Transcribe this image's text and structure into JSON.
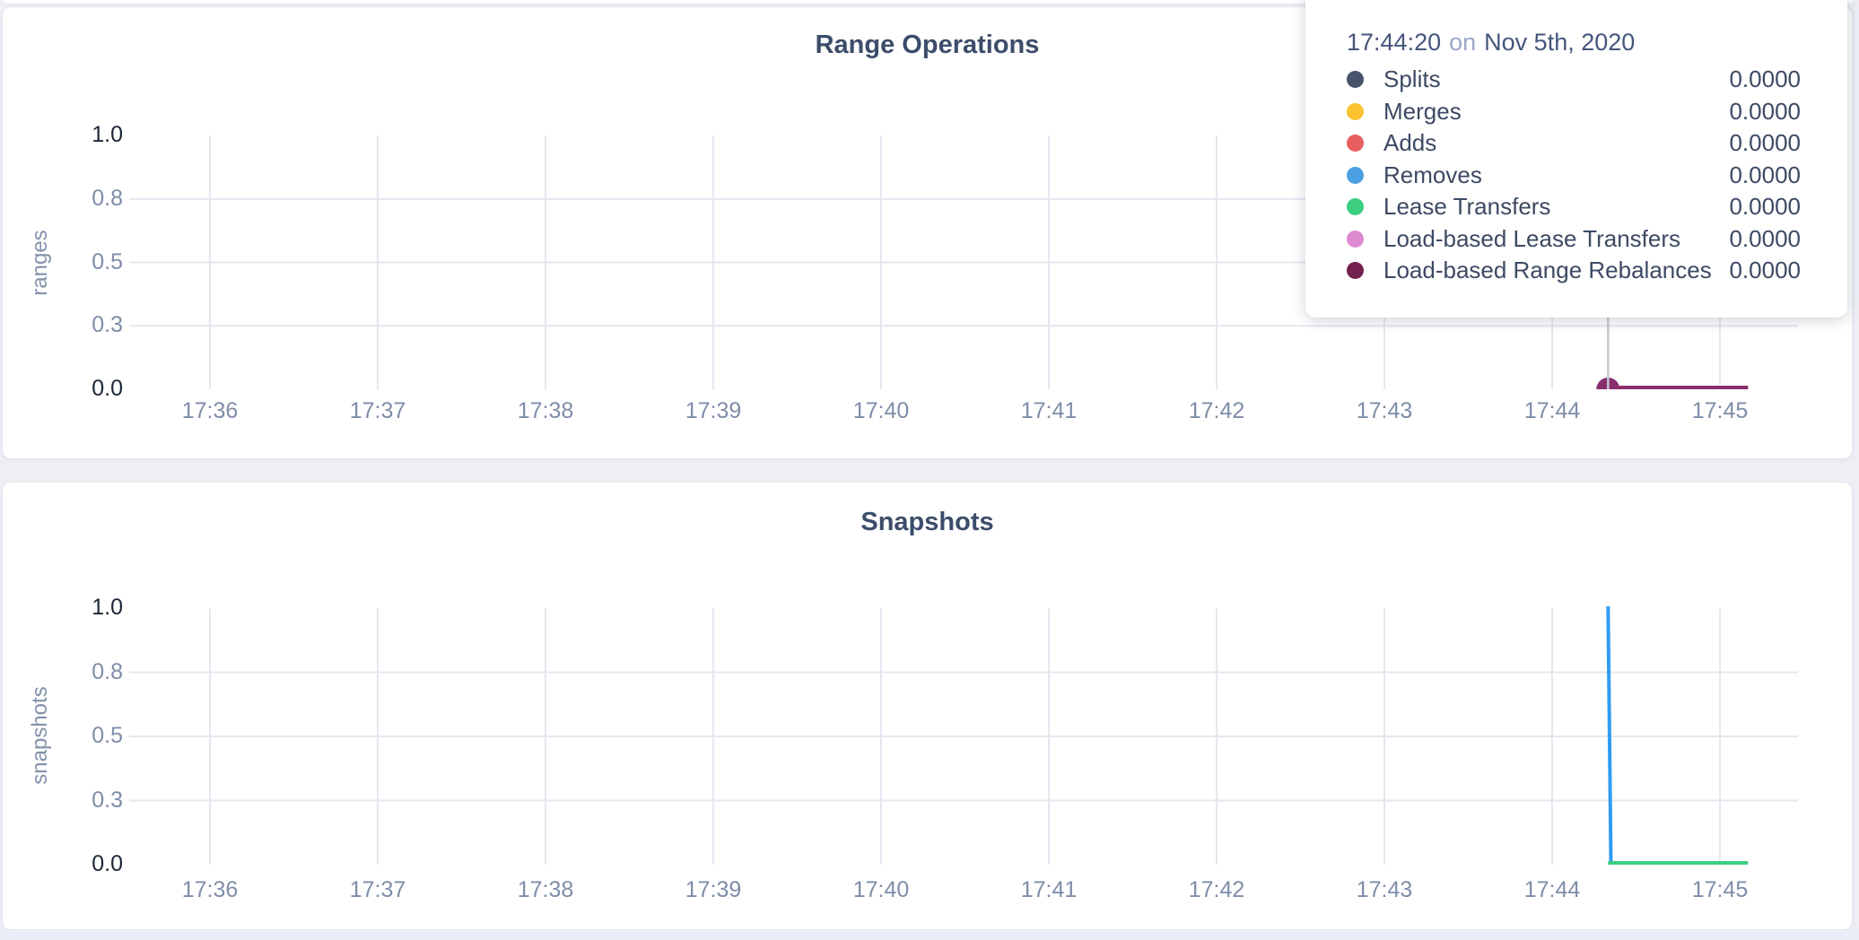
{
  "page": {
    "background_color": "#edeff5",
    "card_color": "#ffffff",
    "grid_color": "#e4e7ef",
    "tick_color_light": "#7e8da8",
    "tick_color_dark": "#1c2538",
    "title_color": "#3c4d6b"
  },
  "chart_data": [
    {
      "type": "line",
      "title": "Range Operations",
      "ylabel": "ranges",
      "xlabel": "",
      "ylim": [
        0,
        1
      ],
      "yticks": [
        "1.0",
        "0.8",
        "0.5",
        "0.3",
        "0.0"
      ],
      "xticks": [
        "17:36",
        "17:37",
        "17:38",
        "17:39",
        "17:40",
        "17:41",
        "17:42",
        "17:43",
        "17:44",
        "17:45"
      ],
      "grid": "on",
      "series": [
        {
          "name": "Splits",
          "color": "#47536b",
          "points": [
            [
              "17:44:16",
              0
            ],
            [
              "17:45:10",
              0
            ]
          ]
        },
        {
          "name": "Merges",
          "color": "#fcc230",
          "points": [
            [
              "17:44:16",
              0
            ],
            [
              "17:45:10",
              0
            ]
          ]
        },
        {
          "name": "Adds",
          "color": "#e85f5f",
          "points": [
            [
              "17:44:16",
              0
            ],
            [
              "17:45:10",
              0
            ]
          ]
        },
        {
          "name": "Removes",
          "color": "#4aa0e0",
          "points": [
            [
              "17:44:16",
              0
            ],
            [
              "17:45:10",
              0
            ]
          ]
        },
        {
          "name": "Lease Transfers",
          "color": "#3dce80",
          "points": [
            [
              "17:44:16",
              0
            ],
            [
              "17:45:10",
              0
            ]
          ]
        },
        {
          "name": "Load-based Lease Transfers",
          "color": "#dd8ad1",
          "points": [
            [
              "17:44:16",
              0
            ],
            [
              "17:45:10",
              0
            ]
          ]
        },
        {
          "name": "Load-based Range Rebalances",
          "color": "#8a2f6e",
          "points": [
            [
              "17:44:16",
              0
            ],
            [
              "17:45:10",
              0
            ]
          ]
        }
      ],
      "hover": {
        "time": "17:44:20",
        "crosshair_color": "#c6cad3",
        "point_color": "#8a2f6e"
      }
    },
    {
      "type": "line",
      "title": "Snapshots",
      "ylabel": "snapshots",
      "xlabel": "",
      "ylim": [
        0,
        1
      ],
      "yticks": [
        "1.0",
        "0.8",
        "0.5",
        "0.3",
        "0.0"
      ],
      "xticks": [
        "17:36",
        "17:37",
        "17:38",
        "17:39",
        "17:40",
        "17:41",
        "17:42",
        "17:43",
        "17:44",
        "17:45"
      ],
      "grid": "on",
      "series": [
        {
          "name": "",
          "color": "#2f9cf4",
          "points": [
            [
              "17:44:20",
              1
            ],
            [
              "17:44:21",
              0
            ],
            [
              "17:45:10",
              0
            ]
          ]
        },
        {
          "name": "",
          "color": "#3dce80",
          "points": [
            [
              "17:44:20",
              0
            ],
            [
              "17:45:10",
              0
            ]
          ]
        }
      ]
    }
  ],
  "tooltip": {
    "time": "17:44:20",
    "connector": "on",
    "date": "Nov 5th, 2020",
    "rows": [
      {
        "label": "Splits",
        "color": "#47536b",
        "value": "0.0000"
      },
      {
        "label": "Merges",
        "color": "#fcc230",
        "value": "0.0000"
      },
      {
        "label": "Adds",
        "color": "#e85f5f",
        "value": "0.0000"
      },
      {
        "label": "Removes",
        "color": "#4aa0e0",
        "value": "0.0000"
      },
      {
        "label": "Lease Transfers",
        "color": "#3dce80",
        "value": "0.0000"
      },
      {
        "label": "Load-based Lease Transfers",
        "color": "#dd8ad1",
        "value": "0.0000"
      },
      {
        "label": "Load-based Range Rebalances",
        "color": "#73214e",
        "value": "0.0000"
      }
    ]
  }
}
